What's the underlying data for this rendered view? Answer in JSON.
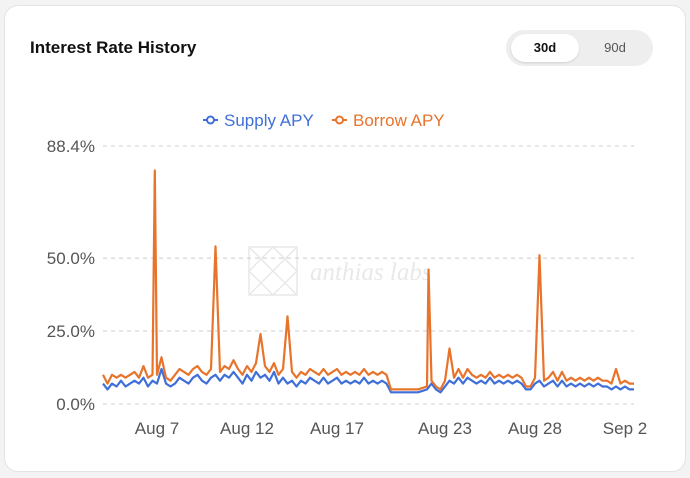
{
  "card": {
    "title": "Interest Rate History",
    "range_tabs": [
      {
        "label": "30d",
        "selected": true
      },
      {
        "label": "90d",
        "selected": false
      }
    ],
    "watermark": "anthias labs"
  },
  "colors": {
    "supply": "#3f6fd8",
    "borrow": "#e8742c",
    "grid": "#cccccc",
    "text": "#555555"
  },
  "chart_data": {
    "type": "line",
    "title": "",
    "xlabel": "",
    "ylabel": "",
    "ylim": [
      0,
      88.4
    ],
    "y_ticks": [
      {
        "value": 0,
        "label": "0.0%"
      },
      {
        "value": 25,
        "label": "25.0%"
      },
      {
        "value": 50,
        "label": "50.0%"
      },
      {
        "value": 88.4,
        "label": "88.4%"
      }
    ],
    "x_range": [
      "2023-08-04",
      "2023-09-02"
    ],
    "x_ticks": [
      {
        "date": "2023-08-07",
        "label": "Aug 7"
      },
      {
        "date": "2023-08-12",
        "label": "Aug 12"
      },
      {
        "date": "2023-08-17",
        "label": "Aug 17"
      },
      {
        "date": "2023-08-23",
        "label": "Aug 23"
      },
      {
        "date": "2023-08-28",
        "label": "Aug 28"
      },
      {
        "date": "2023-09-02",
        "label": "Sep 2"
      }
    ],
    "grid": true,
    "legend_position": "top-center",
    "series": [
      {
        "name": "Supply APY",
        "points": [
          [
            "2023-08-04T00:00",
            7
          ],
          [
            "2023-08-04T06:00",
            5
          ],
          [
            "2023-08-04T12:00",
            7
          ],
          [
            "2023-08-04T18:00",
            6
          ],
          [
            "2023-08-05T00:00",
            8
          ],
          [
            "2023-08-05T06:00",
            6
          ],
          [
            "2023-08-05T12:00",
            7
          ],
          [
            "2023-08-05T18:00",
            8
          ],
          [
            "2023-08-06T00:00",
            7
          ],
          [
            "2023-08-06T06:00",
            9
          ],
          [
            "2023-08-06T12:00",
            6
          ],
          [
            "2023-08-06T18:00",
            8
          ],
          [
            "2023-08-07T00:00",
            7
          ],
          [
            "2023-08-07T06:00",
            12
          ],
          [
            "2023-08-07T12:00",
            7
          ],
          [
            "2023-08-07T18:00",
            6
          ],
          [
            "2023-08-08T00:00",
            7
          ],
          [
            "2023-08-08T06:00",
            9
          ],
          [
            "2023-08-08T12:00",
            8
          ],
          [
            "2023-08-08T18:00",
            7
          ],
          [
            "2023-08-09T00:00",
            9
          ],
          [
            "2023-08-09T06:00",
            10
          ],
          [
            "2023-08-09T12:00",
            8
          ],
          [
            "2023-08-09T18:00",
            7
          ],
          [
            "2023-08-10T00:00",
            9
          ],
          [
            "2023-08-10T06:00",
            10
          ],
          [
            "2023-08-10T12:00",
            8
          ],
          [
            "2023-08-10T18:00",
            10
          ],
          [
            "2023-08-11T00:00",
            9
          ],
          [
            "2023-08-11T06:00",
            11
          ],
          [
            "2023-08-11T12:00",
            9
          ],
          [
            "2023-08-11T18:00",
            7
          ],
          [
            "2023-08-12T00:00",
            10
          ],
          [
            "2023-08-12T06:00",
            8
          ],
          [
            "2023-08-12T12:00",
            11
          ],
          [
            "2023-08-12T18:00",
            9
          ],
          [
            "2023-08-13T00:00",
            10
          ],
          [
            "2023-08-13T06:00",
            8
          ],
          [
            "2023-08-13T12:00",
            11
          ],
          [
            "2023-08-13T18:00",
            7
          ],
          [
            "2023-08-14T00:00",
            9
          ],
          [
            "2023-08-14T06:00",
            7
          ],
          [
            "2023-08-14T12:00",
            8
          ],
          [
            "2023-08-14T18:00",
            6
          ],
          [
            "2023-08-15T00:00",
            8
          ],
          [
            "2023-08-15T06:00",
            7
          ],
          [
            "2023-08-15T12:00",
            9
          ],
          [
            "2023-08-15T18:00",
            8
          ],
          [
            "2023-08-16T00:00",
            7
          ],
          [
            "2023-08-16T06:00",
            9
          ],
          [
            "2023-08-16T12:00",
            7
          ],
          [
            "2023-08-16T18:00",
            8
          ],
          [
            "2023-08-17T00:00",
            9
          ],
          [
            "2023-08-17T06:00",
            7
          ],
          [
            "2023-08-17T12:00",
            8
          ],
          [
            "2023-08-17T18:00",
            7
          ],
          [
            "2023-08-18T00:00",
            8
          ],
          [
            "2023-08-18T06:00",
            7
          ],
          [
            "2023-08-18T12:00",
            9
          ],
          [
            "2023-08-18T18:00",
            7
          ],
          [
            "2023-08-19T00:00",
            8
          ],
          [
            "2023-08-19T06:00",
            7
          ],
          [
            "2023-08-19T12:00",
            8
          ],
          [
            "2023-08-19T18:00",
            7
          ],
          [
            "2023-08-20T00:00",
            4
          ],
          [
            "2023-08-20T12:00",
            4
          ],
          [
            "2023-08-21T00:00",
            4
          ],
          [
            "2023-08-21T12:00",
            4
          ],
          [
            "2023-08-22T00:00",
            5
          ],
          [
            "2023-08-22T06:00",
            7
          ],
          [
            "2023-08-22T12:00",
            5
          ],
          [
            "2023-08-22T18:00",
            4
          ],
          [
            "2023-08-23T00:00",
            6
          ],
          [
            "2023-08-23T06:00",
            8
          ],
          [
            "2023-08-23T12:00",
            7
          ],
          [
            "2023-08-23T18:00",
            9
          ],
          [
            "2023-08-24T00:00",
            7
          ],
          [
            "2023-08-24T06:00",
            9
          ],
          [
            "2023-08-24T12:00",
            8
          ],
          [
            "2023-08-24T18:00",
            7
          ],
          [
            "2023-08-25T00:00",
            8
          ],
          [
            "2023-08-25T06:00",
            7
          ],
          [
            "2023-08-25T12:00",
            9
          ],
          [
            "2023-08-25T18:00",
            7
          ],
          [
            "2023-08-26T00:00",
            8
          ],
          [
            "2023-08-26T06:00",
            7
          ],
          [
            "2023-08-26T12:00",
            8
          ],
          [
            "2023-08-26T18:00",
            7
          ],
          [
            "2023-08-27T00:00",
            8
          ],
          [
            "2023-08-27T06:00",
            7
          ],
          [
            "2023-08-27T12:00",
            5
          ],
          [
            "2023-08-27T18:00",
            5
          ],
          [
            "2023-08-28T00:00",
            7
          ],
          [
            "2023-08-28T06:00",
            8
          ],
          [
            "2023-08-28T12:00",
            6
          ],
          [
            "2023-08-28T18:00",
            7
          ],
          [
            "2023-08-29T00:00",
            8
          ],
          [
            "2023-08-29T06:00",
            6
          ],
          [
            "2023-08-29T12:00",
            8
          ],
          [
            "2023-08-29T18:00",
            6
          ],
          [
            "2023-08-30T00:00",
            7
          ],
          [
            "2023-08-30T06:00",
            6
          ],
          [
            "2023-08-30T12:00",
            7
          ],
          [
            "2023-08-30T18:00",
            6
          ],
          [
            "2023-08-31T00:00",
            7
          ],
          [
            "2023-08-31T06:00",
            6
          ],
          [
            "2023-08-31T12:00",
            7
          ],
          [
            "2023-08-31T18:00",
            6
          ],
          [
            "2023-09-01T00:00",
            6
          ],
          [
            "2023-09-01T06:00",
            5
          ],
          [
            "2023-09-01T12:00",
            6
          ],
          [
            "2023-09-01T18:00",
            5
          ],
          [
            "2023-09-02T00:00",
            6
          ],
          [
            "2023-09-02T06:00",
            5
          ],
          [
            "2023-09-02T12:00",
            5
          ]
        ]
      },
      {
        "name": "Borrow APY",
        "points": [
          [
            "2023-08-04T00:00",
            10
          ],
          [
            "2023-08-04T06:00",
            7
          ],
          [
            "2023-08-04T12:00",
            10
          ],
          [
            "2023-08-04T18:00",
            9
          ],
          [
            "2023-08-05T00:00",
            10
          ],
          [
            "2023-08-05T06:00",
            9
          ],
          [
            "2023-08-05T12:00",
            10
          ],
          [
            "2023-08-05T18:00",
            11
          ],
          [
            "2023-08-06T00:00",
            9
          ],
          [
            "2023-08-06T06:00",
            13
          ],
          [
            "2023-08-06T12:00",
            9
          ],
          [
            "2023-08-06T18:00",
            10
          ],
          [
            "2023-08-06T21:00",
            80
          ],
          [
            "2023-08-07T00:00",
            10
          ],
          [
            "2023-08-07T06:00",
            16
          ],
          [
            "2023-08-07T12:00",
            9
          ],
          [
            "2023-08-07T18:00",
            8
          ],
          [
            "2023-08-08T00:00",
            10
          ],
          [
            "2023-08-08T06:00",
            12
          ],
          [
            "2023-08-08T12:00",
            11
          ],
          [
            "2023-08-08T18:00",
            10
          ],
          [
            "2023-08-09T00:00",
            12
          ],
          [
            "2023-08-09T06:00",
            13
          ],
          [
            "2023-08-09T12:00",
            11
          ],
          [
            "2023-08-09T18:00",
            10
          ],
          [
            "2023-08-10T00:00",
            12
          ],
          [
            "2023-08-10T06:00",
            54
          ],
          [
            "2023-08-10T12:00",
            11
          ],
          [
            "2023-08-10T18:00",
            13
          ],
          [
            "2023-08-11T00:00",
            12
          ],
          [
            "2023-08-11T06:00",
            15
          ],
          [
            "2023-08-11T12:00",
            12
          ],
          [
            "2023-08-11T18:00",
            10
          ],
          [
            "2023-08-12T00:00",
            13
          ],
          [
            "2023-08-12T06:00",
            11
          ],
          [
            "2023-08-12T12:00",
            14
          ],
          [
            "2023-08-12T18:00",
            24
          ],
          [
            "2023-08-13T00:00",
            13
          ],
          [
            "2023-08-13T06:00",
            11
          ],
          [
            "2023-08-13T12:00",
            14
          ],
          [
            "2023-08-13T18:00",
            10
          ],
          [
            "2023-08-14T00:00",
            12
          ],
          [
            "2023-08-14T06:00",
            30
          ],
          [
            "2023-08-14T12:00",
            11
          ],
          [
            "2023-08-14T18:00",
            9
          ],
          [
            "2023-08-15T00:00",
            11
          ],
          [
            "2023-08-15T06:00",
            10
          ],
          [
            "2023-08-15T12:00",
            12
          ],
          [
            "2023-08-15T18:00",
            11
          ],
          [
            "2023-08-16T00:00",
            10
          ],
          [
            "2023-08-16T06:00",
            12
          ],
          [
            "2023-08-16T12:00",
            10
          ],
          [
            "2023-08-16T18:00",
            11
          ],
          [
            "2023-08-17T00:00",
            12
          ],
          [
            "2023-08-17T06:00",
            10
          ],
          [
            "2023-08-17T12:00",
            11
          ],
          [
            "2023-08-17T18:00",
            10
          ],
          [
            "2023-08-18T00:00",
            11
          ],
          [
            "2023-08-18T06:00",
            10
          ],
          [
            "2023-08-18T12:00",
            12
          ],
          [
            "2023-08-18T18:00",
            10
          ],
          [
            "2023-08-19T00:00",
            11
          ],
          [
            "2023-08-19T06:00",
            10
          ],
          [
            "2023-08-19T12:00",
            11
          ],
          [
            "2023-08-19T18:00",
            10
          ],
          [
            "2023-08-20T00:00",
            5
          ],
          [
            "2023-08-20T12:00",
            5
          ],
          [
            "2023-08-21T00:00",
            5
          ],
          [
            "2023-08-21T12:00",
            5
          ],
          [
            "2023-08-22T00:00",
            6
          ],
          [
            "2023-08-22T02:00",
            46
          ],
          [
            "2023-08-22T06:00",
            8
          ],
          [
            "2023-08-22T12:00",
            6
          ],
          [
            "2023-08-22T18:00",
            5
          ],
          [
            "2023-08-23T00:00",
            8
          ],
          [
            "2023-08-23T06:00",
            19
          ],
          [
            "2023-08-23T12:00",
            9
          ],
          [
            "2023-08-23T18:00",
            12
          ],
          [
            "2023-08-24T00:00",
            9
          ],
          [
            "2023-08-24T06:00",
            12
          ],
          [
            "2023-08-24T12:00",
            10
          ],
          [
            "2023-08-24T18:00",
            9
          ],
          [
            "2023-08-25T00:00",
            10
          ],
          [
            "2023-08-25T06:00",
            9
          ],
          [
            "2023-08-25T12:00",
            11
          ],
          [
            "2023-08-25T18:00",
            9
          ],
          [
            "2023-08-26T00:00",
            10
          ],
          [
            "2023-08-26T06:00",
            9
          ],
          [
            "2023-08-26T12:00",
            10
          ],
          [
            "2023-08-26T18:00",
            9
          ],
          [
            "2023-08-27T00:00",
            10
          ],
          [
            "2023-08-27T06:00",
            9
          ],
          [
            "2023-08-27T12:00",
            6
          ],
          [
            "2023-08-27T18:00",
            6
          ],
          [
            "2023-08-28T00:00",
            9
          ],
          [
            "2023-08-28T06:00",
            51
          ],
          [
            "2023-08-28T12:00",
            8
          ],
          [
            "2023-08-28T18:00",
            9
          ],
          [
            "2023-08-29T00:00",
            11
          ],
          [
            "2023-08-29T06:00",
            8
          ],
          [
            "2023-08-29T12:00",
            11
          ],
          [
            "2023-08-29T18:00",
            8
          ],
          [
            "2023-08-30T00:00",
            9
          ],
          [
            "2023-08-30T06:00",
            8
          ],
          [
            "2023-08-30T12:00",
            9
          ],
          [
            "2023-08-30T18:00",
            8
          ],
          [
            "2023-08-31T00:00",
            9
          ],
          [
            "2023-08-31T06:00",
            8
          ],
          [
            "2023-08-31T12:00",
            9
          ],
          [
            "2023-08-31T18:00",
            8
          ],
          [
            "2023-09-01T00:00",
            8
          ],
          [
            "2023-09-01T06:00",
            7
          ],
          [
            "2023-09-01T12:00",
            12
          ],
          [
            "2023-09-01T18:00",
            7
          ],
          [
            "2023-09-02T00:00",
            8
          ],
          [
            "2023-09-02T06:00",
            7
          ],
          [
            "2023-09-02T12:00",
            7
          ]
        ]
      }
    ]
  }
}
